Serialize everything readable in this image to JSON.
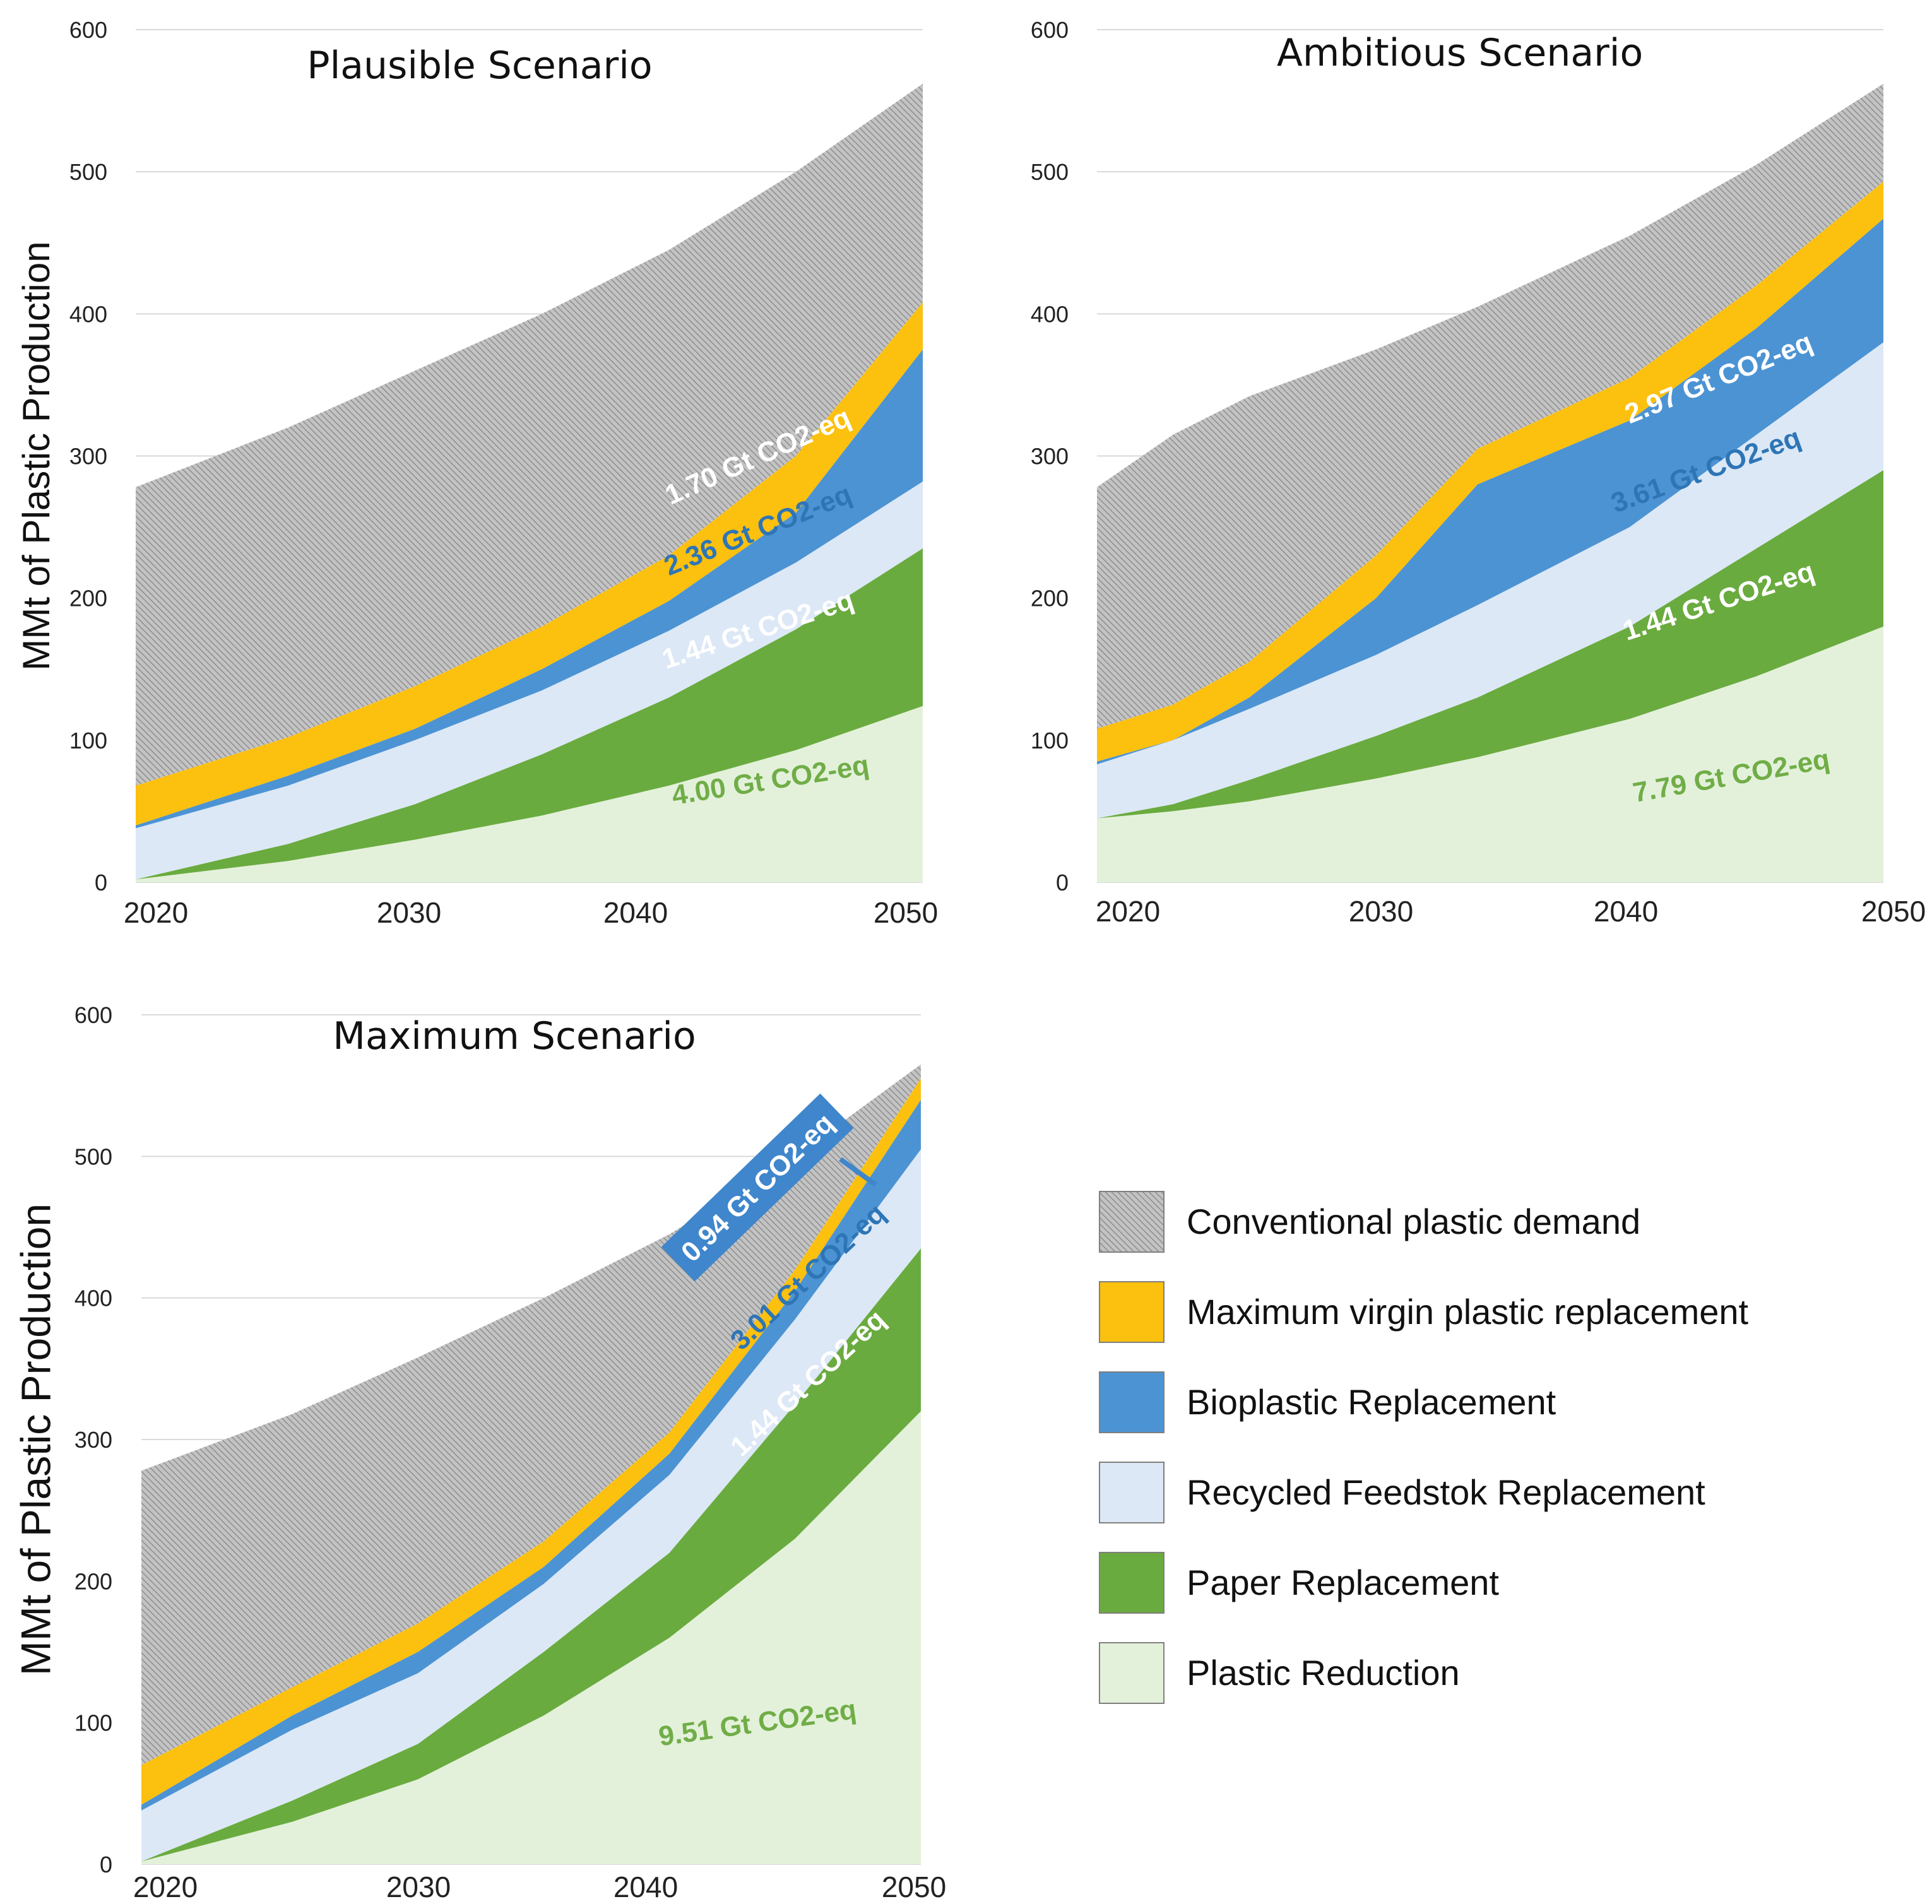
{
  "colors": {
    "conventional": "#b9b9b9",
    "hatch_line": "#8a8a8a",
    "virgin": "#fcc00f",
    "bioplastic": "#4c93d3",
    "recycled": "#dce8f6",
    "paper": "#6aab3f",
    "reduction": "#e3f1da",
    "label_blue": "#2e75b6",
    "label_blue_box": "#3f86cc",
    "label_green": "#70ad47",
    "label_white": "#ffffff",
    "grid": "#d9d9d9"
  },
  "legend": {
    "items": [
      {
        "key": "conventional",
        "label": "Conventional plastic demand"
      },
      {
        "key": "virgin",
        "label": "Maximum virgin plastic replacement"
      },
      {
        "key": "bioplastic",
        "label": "Bioplastic Replacement"
      },
      {
        "key": "recycled",
        "label": "Recycled Feedstok Replacement"
      },
      {
        "key": "paper",
        "label": "Paper Replacement"
      },
      {
        "key": "reduction",
        "label": "Plastic Reduction"
      }
    ]
  },
  "chart_data": [
    {
      "type": "area",
      "id": "plausible",
      "title": "Plausible Scenario",
      "ylabel": "MMt of Plastic Production",
      "xlabel": "",
      "xlim": [
        2019,
        2050
      ],
      "ylim": [
        0,
        600
      ],
      "yticks": [
        0,
        100,
        200,
        300,
        400,
        500,
        600
      ],
      "xticks": [
        2020,
        2030,
        2040,
        2050
      ],
      "x": [
        2019,
        2025,
        2030,
        2035,
        2040,
        2045,
        2050
      ],
      "series": [
        {
          "name": "Plastic Reduction",
          "key": "reduction",
          "cumulative": [
            2,
            15,
            30,
            47,
            68,
            93,
            124
          ]
        },
        {
          "name": "Paper Replacement",
          "key": "paper",
          "cumulative": [
            2,
            27,
            55,
            90,
            130,
            178,
            235
          ]
        },
        {
          "name": "Recycled Feedstok Replacement",
          "key": "recycled",
          "cumulative": [
            38,
            68,
            100,
            135,
            177,
            225,
            282
          ]
        },
        {
          "name": "Bioplastic Replacement",
          "key": "bioplastic",
          "cumulative": [
            40,
            75,
            108,
            150,
            198,
            260,
            375
          ]
        },
        {
          "name": "Maximum virgin plastic replacement",
          "key": "virgin",
          "cumulative": [
            68,
            102,
            138,
            180,
            230,
            300,
            408
          ]
        },
        {
          "name": "Conventional plastic demand",
          "key": "conventional",
          "cumulative": [
            278,
            320,
            360,
            400,
            445,
            500,
            562
          ]
        }
      ],
      "annotations": [
        {
          "text": "1.70 Gt CO2-eq",
          "x": 2043.5,
          "y": 300,
          "rotate": -24,
          "style": "white"
        },
        {
          "text": "2.36 Gt CO2-eq",
          "x": 2043.5,
          "y": 248,
          "rotate": -22,
          "style": "blue"
        },
        {
          "text": "1.44 Gt CO2-eq",
          "x": 2043.5,
          "y": 178,
          "rotate": -18,
          "style": "white"
        },
        {
          "text": "4.00 Gt CO2-eq",
          "x": 2044,
          "y": 72,
          "rotate": -9,
          "style": "green"
        }
      ]
    },
    {
      "type": "area",
      "id": "ambitious",
      "title": "Ambitious Scenario",
      "ylabel": "",
      "xlabel": "",
      "xlim": [
        2019,
        2050
      ],
      "ylim": [
        0,
        600
      ],
      "yticks": [
        0,
        100,
        200,
        300,
        400,
        500,
        600
      ],
      "xticks": [
        2020,
        2030,
        2040,
        2050
      ],
      "x": [
        2019,
        2022,
        2025,
        2030,
        2034,
        2040,
        2045,
        2050
      ],
      "series": [
        {
          "name": "Plastic Reduction",
          "key": "reduction",
          "cumulative": [
            45,
            50,
            57,
            73,
            88,
            115,
            145,
            180
          ]
        },
        {
          "name": "Paper Replacement",
          "key": "paper",
          "cumulative": [
            45,
            55,
            72,
            103,
            130,
            180,
            235,
            290
          ]
        },
        {
          "name": "Recycled Feedstok Replacement",
          "key": "recycled",
          "cumulative": [
            83,
            100,
            122,
            160,
            195,
            250,
            315,
            380
          ]
        },
        {
          "name": "Bioplastic Replacement",
          "key": "bioplastic",
          "cumulative": [
            85,
            100,
            130,
            200,
            280,
            325,
            390,
            467
          ]
        },
        {
          "name": "Maximum virgin plastic replacement",
          "key": "virgin",
          "cumulative": [
            108,
            125,
            155,
            230,
            305,
            355,
            420,
            493
          ]
        },
        {
          "name": "Conventional plastic demand",
          "key": "conventional",
          "cumulative": [
            278,
            315,
            342,
            375,
            405,
            455,
            505,
            562
          ]
        }
      ],
      "annotations": [
        {
          "text": "2.97 Gt CO2-eq",
          "x": 2043.5,
          "y": 355,
          "rotate": -22,
          "style": "white"
        },
        {
          "text": "3.61 Gt CO2-eq",
          "x": 2043,
          "y": 290,
          "rotate": -20,
          "style": "blue"
        },
        {
          "text": "1.44 Gt CO2-eq",
          "x": 2043.5,
          "y": 198,
          "rotate": -18,
          "style": "white"
        },
        {
          "text": "7.79 Gt CO2-eq",
          "x": 2044,
          "y": 75,
          "rotate": -10,
          "style": "green"
        }
      ]
    },
    {
      "type": "area",
      "id": "maximum",
      "title": "Maximum Scenario",
      "ylabel": "MMt of Plastic Production",
      "xlabel": "",
      "xlim": [
        2019,
        2050
      ],
      "ylim": [
        0,
        600
      ],
      "yticks": [
        0,
        100,
        200,
        300,
        400,
        500,
        600
      ],
      "xticks": [
        2020,
        2030,
        2040,
        2050
      ],
      "x": [
        2019,
        2025,
        2030,
        2035,
        2040,
        2045,
        2050
      ],
      "series": [
        {
          "name": "Plastic Reduction",
          "key": "reduction",
          "cumulative": [
            2,
            30,
            60,
            105,
            160,
            230,
            320
          ]
        },
        {
          "name": "Paper Replacement",
          "key": "paper",
          "cumulative": [
            2,
            45,
            85,
            150,
            220,
            325,
            435
          ]
        },
        {
          "name": "Recycled Feedstok Replacement",
          "key": "recycled",
          "cumulative": [
            38,
            95,
            135,
            198,
            275,
            385,
            505
          ]
        },
        {
          "name": "Bioplastic Replacement",
          "key": "bioplastic",
          "cumulative": [
            42,
            105,
            150,
            210,
            290,
            405,
            540
          ]
        },
        {
          "name": "Maximum virgin plastic replacement",
          "key": "virgin",
          "cumulative": [
            70,
            125,
            170,
            228,
            305,
            420,
            555
          ]
        },
        {
          "name": "Conventional plastic demand",
          "key": "conventional",
          "cumulative": [
            278,
            318,
            358,
            400,
            445,
            500,
            565
          ]
        }
      ],
      "annotations": [
        {
          "text": "0.94 Gt CO2-eq",
          "x": 2043.5,
          "y": 478,
          "rotate": -44,
          "style": "boxed"
        },
        {
          "text": "3.01 Gt CO2-eq",
          "x": 2045.5,
          "y": 415,
          "rotate": -43,
          "style": "blue"
        },
        {
          "text": "1.44 Gt CO2-eq",
          "x": 2045.5,
          "y": 340,
          "rotate": -43,
          "style": "white"
        },
        {
          "text": "9.51 Gt CO2-eq",
          "x": 2043.5,
          "y": 100,
          "rotate": -8,
          "style": "green"
        }
      ]
    }
  ]
}
